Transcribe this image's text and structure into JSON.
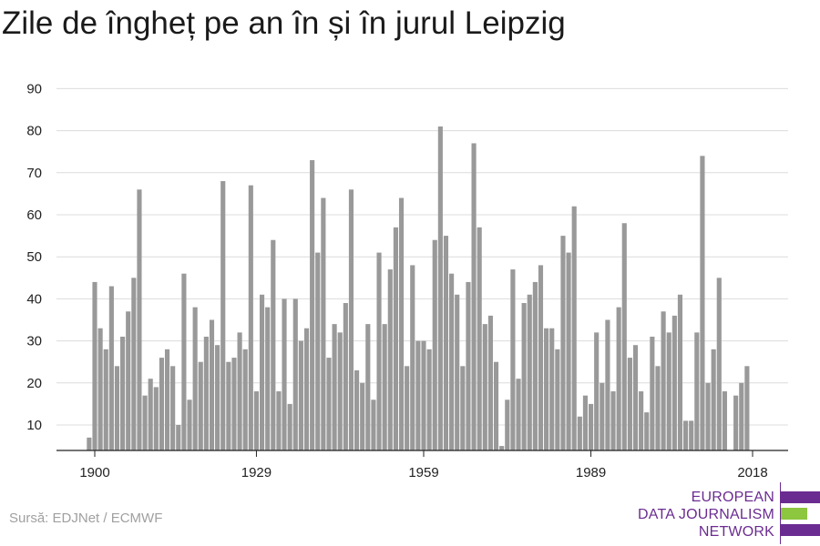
{
  "header": {
    "title": "Zile de îngheț pe an în și în jurul Leipzig"
  },
  "footer": {
    "source": "Sursă: EDJNet / ECMWF"
  },
  "logo": {
    "line1": "EUROPEAN",
    "line2": "DATA JOURNALISM",
    "line3": "NETWORK",
    "colors": {
      "purple": "#6b2c91",
      "green": "#8dc63f"
    }
  },
  "chart_data": {
    "type": "bar",
    "title": "Zile de îngheț pe an în și în jurul Leipzig",
    "xlabel": "",
    "ylabel": "",
    "x_start_year": 1900,
    "x_end_year": 2018,
    "x_ticks": [
      "1900",
      "1929",
      "1959",
      "1989",
      "2018"
    ],
    "y_ticks": [
      "10",
      "20",
      "30",
      "40",
      "50",
      "60",
      "70",
      "80",
      "90"
    ],
    "ylim": [
      3,
      90
    ],
    "grid": true,
    "bar_color": "#999999",
    "x": [
      1899,
      1900,
      1901,
      1902,
      1903,
      1904,
      1905,
      1906,
      1907,
      1908,
      1909,
      1910,
      1911,
      1912,
      1913,
      1914,
      1915,
      1916,
      1917,
      1918,
      1919,
      1920,
      1921,
      1922,
      1923,
      1924,
      1925,
      1926,
      1927,
      1928,
      1929,
      1930,
      1931,
      1932,
      1933,
      1934,
      1935,
      1936,
      1937,
      1938,
      1939,
      1940,
      1941,
      1942,
      1943,
      1944,
      1945,
      1946,
      1947,
      1948,
      1949,
      1950,
      1951,
      1952,
      1953,
      1954,
      1955,
      1956,
      1957,
      1958,
      1959,
      1960,
      1961,
      1962,
      1963,
      1964,
      1965,
      1966,
      1967,
      1968,
      1969,
      1970,
      1971,
      1972,
      1973,
      1974,
      1975,
      1976,
      1977,
      1978,
      1979,
      1980,
      1981,
      1982,
      1983,
      1984,
      1985,
      1986,
      1987,
      1988,
      1989,
      1990,
      1991,
      1992,
      1993,
      1994,
      1995,
      1996,
      1997,
      1998,
      1999,
      2000,
      2001,
      2002,
      2003,
      2004,
      2005,
      2006,
      2007,
      2008,
      2009,
      2010,
      2011,
      2012,
      2013,
      2014,
      2015,
      2016,
      2017,
      2018
    ],
    "values": [
      7,
      44,
      33,
      28,
      43,
      24,
      31,
      37,
      45,
      66,
      17,
      21,
      19,
      26,
      28,
      24,
      10,
      46,
      16,
      38,
      25,
      31,
      35,
      29,
      68,
      25,
      26,
      32,
      28,
      67,
      18,
      41,
      38,
      54,
      18,
      40,
      15,
      40,
      30,
      33,
      73,
      51,
      64,
      26,
      34,
      32,
      39,
      66,
      23,
      20,
      34,
      16,
      51,
      34,
      47,
      57,
      64,
      24,
      48,
      30,
      30,
      28,
      54,
      81,
      55,
      46,
      41,
      24,
      44,
      77,
      57,
      34,
      36,
      25,
      5,
      16,
      47,
      21,
      39,
      41,
      44,
      48,
      33,
      33,
      28,
      55,
      51,
      62,
      12,
      17,
      15,
      32,
      20,
      35,
      18,
      38,
      58,
      26,
      29,
      18,
      13,
      31,
      24,
      37,
      32,
      36,
      41,
      11,
      11,
      32,
      74,
      20,
      28,
      45,
      18,
      4,
      17,
      20,
      24,
      3
    ]
  }
}
